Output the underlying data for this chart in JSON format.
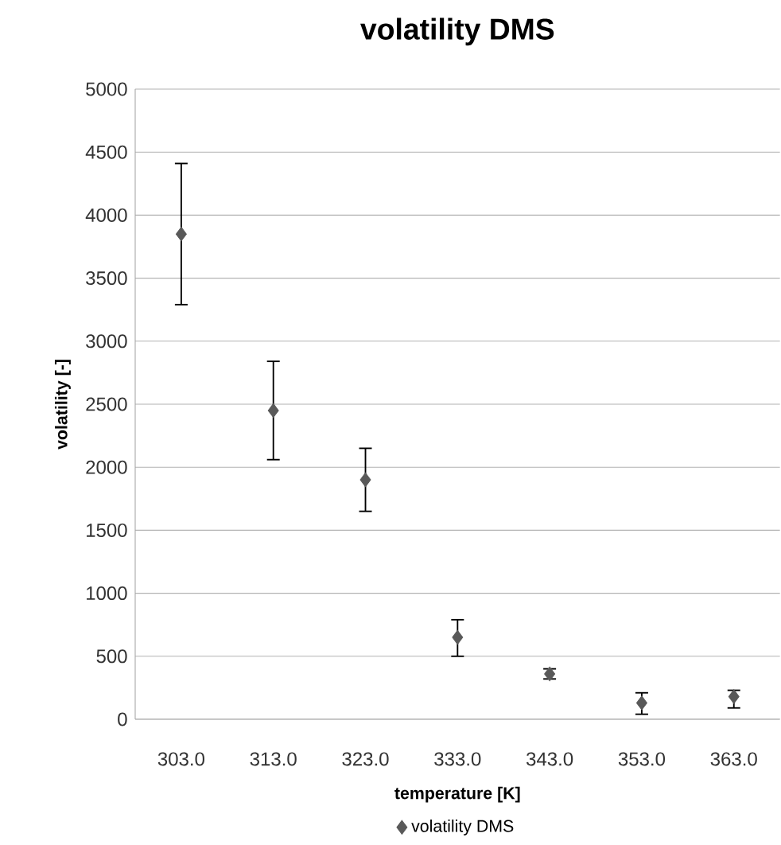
{
  "chart_data": {
    "type": "scatter",
    "title": "volatility DMS",
    "xlabel": "temperature [K]",
    "ylabel": "volatility [-]",
    "categories": [
      "303.0",
      "313.0",
      "323.0",
      "333.0",
      "343.0",
      "353.0",
      "363.0"
    ],
    "series": [
      {
        "name": "volatility DMS",
        "color": "#595959",
        "values": [
          3850,
          2450,
          1900,
          650,
          360,
          130,
          180
        ],
        "errors": [
          [
            3290,
            4410
          ],
          [
            2060,
            2840
          ],
          [
            1650,
            2150
          ],
          [
            500,
            790
          ],
          [
            320,
            400
          ],
          [
            40,
            210
          ],
          [
            90,
            230
          ]
        ]
      }
    ],
    "ylim": [
      0,
      5000
    ],
    "yticks": [
      0,
      500,
      1000,
      1500,
      2000,
      2500,
      3000,
      3500,
      4000,
      4500,
      5000
    ],
    "grid": "y",
    "legend": "bottom",
    "marker": "diamond"
  }
}
